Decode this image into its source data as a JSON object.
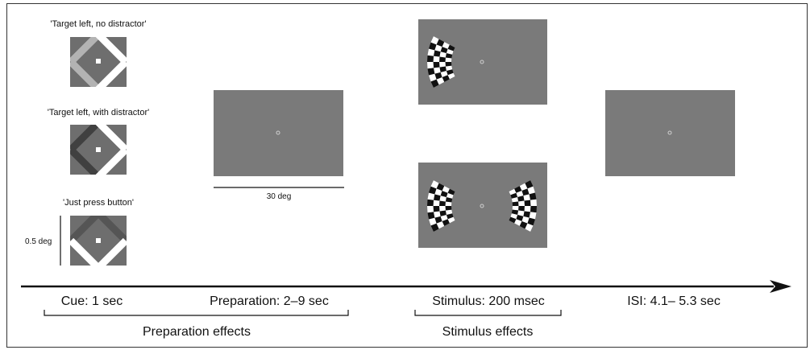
{
  "cues": [
    {
      "label": "'Target left, no distractor'",
      "variant": "no-distractor"
    },
    {
      "label": "'Target left, with distractor'",
      "variant": "with-distractor"
    },
    {
      "label": "'Just press button'",
      "variant": "press-button"
    }
  ],
  "cue_scale_label": "0.5 deg",
  "screen_scale_label": "30 deg",
  "timeline": {
    "phases": [
      {
        "label": "Cue: 1 sec"
      },
      {
        "label": "Preparation: 2–9 sec"
      },
      {
        "label": "Stimulus: 200 msec"
      },
      {
        "label": "ISI: 4.1– 5.3 sec"
      }
    ],
    "effects": [
      {
        "label": "Preparation effects"
      },
      {
        "label": "Stimulus effects"
      }
    ]
  },
  "colors": {
    "screen_gray": "#7a7a7a",
    "cue_bg": "#6e6e6e",
    "cue_light_arm": "#b3b3b3",
    "cue_dark_arm": "#404040",
    "cue_mid_arm": "#555555",
    "white": "#ffffff",
    "black": "#111111"
  }
}
